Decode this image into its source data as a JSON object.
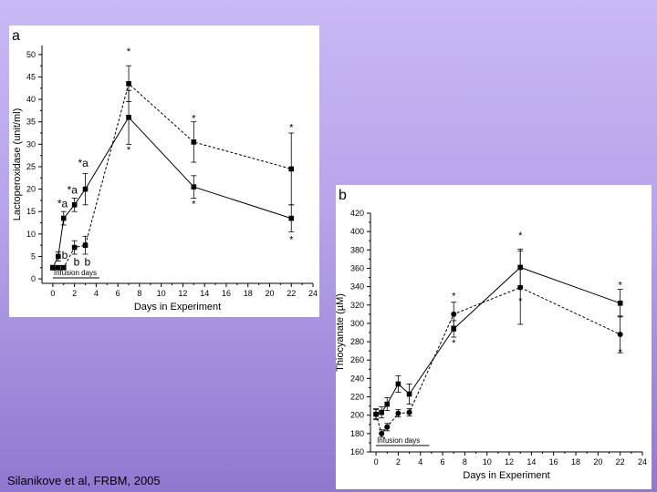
{
  "credit": "Silanikove et al, FRBM, 2005",
  "chart_data": [
    {
      "type": "line",
      "panel_label": "a",
      "xlabel": "Days in Experiment",
      "ylabel": "Lactoperoxidase (unit/ml)",
      "xlim": [
        -1,
        24
      ],
      "ylim": [
        -1,
        52
      ],
      "xticks": [
        0,
        2,
        4,
        6,
        8,
        10,
        12,
        14,
        16,
        18,
        20,
        22,
        24
      ],
      "yticks": [
        0,
        5,
        10,
        15,
        20,
        25,
        30,
        35,
        40,
        45,
        50
      ],
      "grid": false,
      "infusion_label": "Infusion days",
      "series": [
        {
          "style": "solid",
          "marker": "square",
          "x": [
            0,
            0.5,
            1,
            2,
            3,
            7,
            13,
            22
          ],
          "y": [
            2.5,
            5,
            13.5,
            16.5,
            20,
            36,
            20.5,
            13.5
          ],
          "err": [
            0.5,
            1,
            1.5,
            1.5,
            3.5,
            6,
            2.5,
            3
          ]
        },
        {
          "style": "dashed",
          "marker": "square",
          "x": [
            0,
            0.5,
            1,
            2,
            3,
            7,
            13,
            22
          ],
          "y": [
            2.5,
            2.5,
            2.5,
            7,
            7.5,
            43.5,
            30.5,
            24.5
          ],
          "err": [
            0.5,
            0.5,
            0.5,
            1.5,
            2,
            4,
            4.5,
            8
          ]
        }
      ],
      "annotations": [
        {
          "text": "*a",
          "x": 0.9,
          "y": 16
        },
        {
          "text": "*a",
          "x": 1.8,
          "y": 19
        },
        {
          "text": "*a",
          "x": 2.8,
          "y": 25
        },
        {
          "text": "b",
          "x": 1.1,
          "y": 4.5
        },
        {
          "text": "b",
          "x": 2.2,
          "y": 3
        },
        {
          "text": "b",
          "x": 3.2,
          "y": 3
        },
        {
          "text": "*",
          "x": 7,
          "y": 50
        },
        {
          "text": "*",
          "x": 7,
          "y": 28
        },
        {
          "text": "*",
          "x": 13,
          "y": 35
        },
        {
          "text": "*",
          "x": 13,
          "y": 16
        },
        {
          "text": "*",
          "x": 22,
          "y": 33
        },
        {
          "text": "*",
          "x": 22,
          "y": 8
        }
      ]
    },
    {
      "type": "line",
      "panel_label": "b",
      "xlabel": "Days in Experiment",
      "ylabel": "Thiocyanate (µM)",
      "xlim": [
        -0.5,
        24
      ],
      "ylim": [
        160,
        420
      ],
      "xticks": [
        0,
        2,
        4,
        6,
        8,
        10,
        12,
        14,
        16,
        18,
        20,
        22,
        24
      ],
      "yticks": [
        160,
        180,
        200,
        220,
        240,
        260,
        280,
        300,
        320,
        340,
        360,
        380,
        400,
        420
      ],
      "grid": false,
      "infusion_label": "Infusion days",
      "series": [
        {
          "style": "solid",
          "marker": "square",
          "x": [
            0,
            0.5,
            1,
            2,
            3,
            7,
            13,
            22
          ],
          "y": [
            201,
            203,
            212,
            234,
            223,
            294,
            361,
            322
          ],
          "err": [
            6,
            6,
            7,
            9,
            11,
            9,
            20,
            15
          ]
        },
        {
          "style": "dashed",
          "marker": "circle",
          "x": [
            0,
            0.5,
            1,
            2,
            3,
            7,
            13,
            22
          ],
          "y": [
            201,
            180,
            187,
            202,
            203,
            310,
            339,
            288
          ],
          "err": [
            5,
            4,
            4,
            4,
            4,
            13,
            40,
            20
          ]
        }
      ],
      "annotations": [
        {
          "text": "*",
          "x": 7,
          "y": 326
        },
        {
          "text": "*",
          "x": 7,
          "y": 275
        },
        {
          "text": "*",
          "x": 13,
          "y": 392
        },
        {
          "text": "*",
          "x": 13,
          "y": 321
        },
        {
          "text": "*",
          "x": 22,
          "y": 338
        },
        {
          "text": "*",
          "x": 22,
          "y": 265
        }
      ]
    }
  ]
}
